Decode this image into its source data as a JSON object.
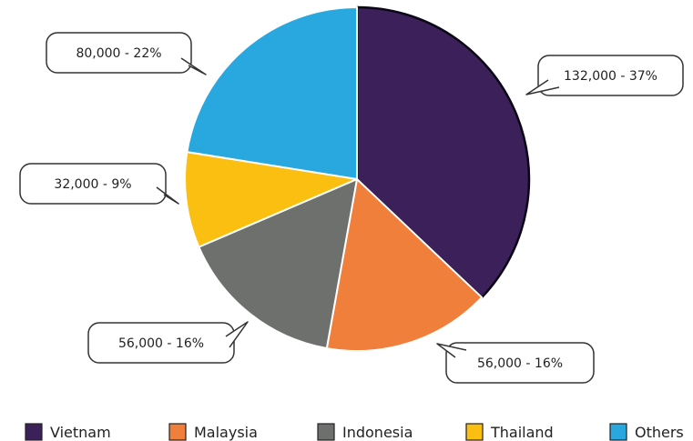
{
  "chart_data": {
    "type": "pie",
    "title": "",
    "slices": [
      {
        "name": "Vietnam",
        "value": 132000,
        "label": "132,000 - 37%",
        "color": "#3b2059"
      },
      {
        "name": "Malaysia",
        "value": 56000,
        "label": "56,000 - 16%",
        "color": "#f07f3c"
      },
      {
        "name": "Indonesia",
        "value": 56000,
        "label": "56,000 - 16%",
        "color": "#6e706d"
      },
      {
        "name": "Thailand",
        "value": 32000,
        "label": "32,000 - 9%",
        "color": "#fbbf12"
      },
      {
        "name": "Others",
        "value": 80000,
        "label": "80,000 - 22%",
        "color": "#29a8e0"
      }
    ],
    "legend": {
      "position": "bottom"
    }
  }
}
